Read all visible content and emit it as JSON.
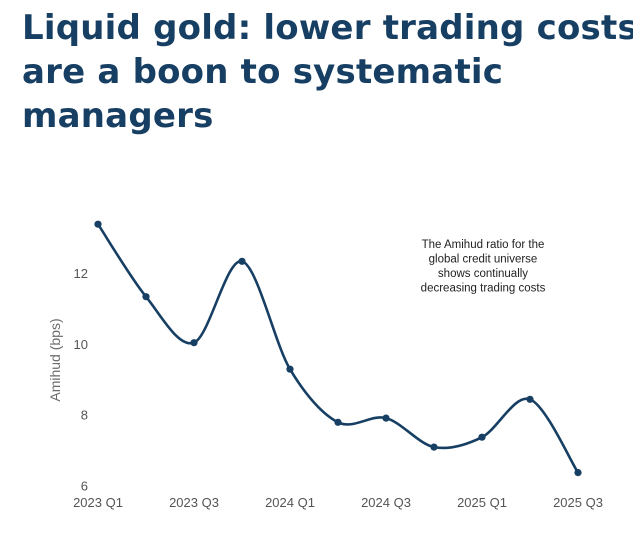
{
  "title_lines": [
    "Liquid gold: lower trading costs",
    "are a boon to systematic",
    "managers"
  ],
  "chart_data": {
    "type": "line",
    "title": "Liquid gold: lower trading costs are a boon to systematic managers",
    "xlabel": "",
    "ylabel": "Amihud (bps)",
    "ylim": [
      6,
      13.8
    ],
    "yticks": [
      6,
      8,
      10,
      12
    ],
    "xticks": [
      "2023 Q1",
      "2023 Q3",
      "2024 Q1",
      "2024 Q3",
      "2025 Q1",
      "2025 Q3"
    ],
    "x": [
      "2023 Q1",
      "2023 Q2",
      "2023 Q3",
      "2023 Q4",
      "2024 Q1",
      "2024 Q2",
      "2024 Q3",
      "2024 Q4",
      "2025 Q1",
      "2025 Q2",
      "2025 Q3"
    ],
    "series": [
      {
        "name": "Amihud ratio",
        "values": [
          13.4,
          11.35,
          10.05,
          12.35,
          9.3,
          7.8,
          7.92,
          7.1,
          7.38,
          8.45,
          6.38
        ]
      }
    ],
    "annotation": [
      "The Amihud ratio for the",
      "global credit universe",
      "shows continually",
      "decreasing trading costs"
    ],
    "colors": {
      "line": "#173f63",
      "title": "#173f63"
    }
  }
}
